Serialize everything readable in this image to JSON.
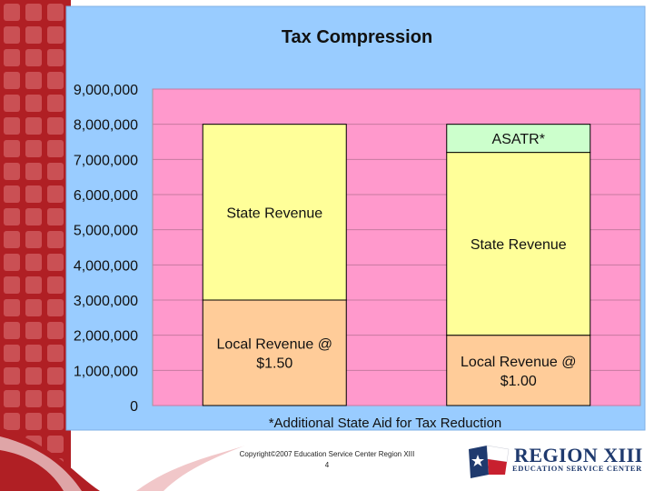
{
  "chart_data": {
    "type": "bar",
    "stacked": true,
    "title": "Tax Compression",
    "xlabel": "*Additional State Aid for Tax Reduction",
    "ylabel": "",
    "ylim": [
      0,
      9000000
    ],
    "yticks": [
      "0",
      "1,000,000",
      "2,000,000",
      "3,000,000",
      "4,000,000",
      "5,000,000",
      "6,000,000",
      "7,000,000",
      "8,000,000",
      "9,000,000"
    ],
    "grid": true,
    "legend": "none",
    "categories": [
      "",
      ""
    ],
    "series": [
      {
        "name": "",
        "segments": [
          {
            "label": "Local Revenue @ $1.50",
            "value": 3000000
          },
          {
            "label": "Local Revenue @ $1.00",
            "value": 2000000
          }
        ],
        "color": "#ffcc99"
      },
      {
        "name": "",
        "segments": [
          {
            "label": "State Revenue",
            "value": 5000000
          },
          {
            "label": "State Revenue",
            "value": 5200000
          }
        ],
        "color": "#ffff99"
      },
      {
        "name": "",
        "segments": [
          null,
          {
            "label": "ASATR*",
            "value": 800000
          }
        ],
        "color": "#ccffcc"
      }
    ],
    "colors": {
      "plot_bg": "#ff99cc",
      "chart_bg": "#99ccff"
    }
  },
  "footer": {
    "copyright": "Copyright©2007 Education Service Center Region XIII",
    "page": "4"
  },
  "logo": {
    "line1": "REGION XIII",
    "line2": "EDUCATION SERVICE CENTER"
  }
}
